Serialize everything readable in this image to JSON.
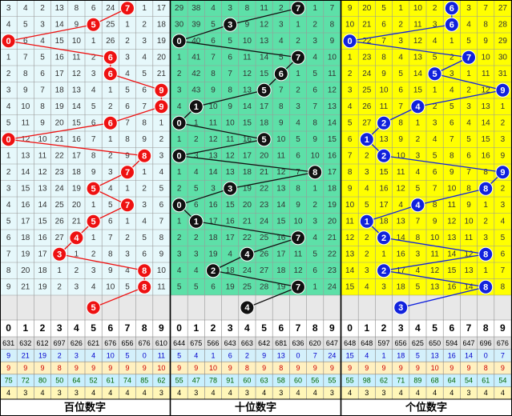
{
  "chart_data": {
    "type": "table",
    "sections": [
      {
        "label": "百位数字",
        "bg": "#e6f8fb",
        "ball_color": "#ee1111",
        "grid": [
          [
            "3",
            "4",
            "2",
            "13",
            "8",
            "6",
            "24",
            "7",
            "1",
            "17"
          ],
          [
            "4",
            "5",
            "3",
            "14",
            "9",
            "5",
            "25",
            "1",
            "2",
            "18"
          ],
          [
            "0",
            "6",
            "4",
            "15",
            "10",
            "1",
            "26",
            "2",
            "3",
            "19"
          ],
          [
            "1",
            "7",
            "5",
            "16",
            "11",
            "2",
            "6",
            "3",
            "4",
            "20"
          ],
          [
            "2",
            "8",
            "6",
            "17",
            "12",
            "3",
            "6",
            "4",
            "5",
            "21"
          ],
          [
            "3",
            "9",
            "7",
            "18",
            "13",
            "4",
            "1",
            "5",
            "6",
            "9"
          ],
          [
            "4",
            "10",
            "8",
            "19",
            "14",
            "5",
            "2",
            "6",
            "7",
            "9"
          ],
          [
            "5",
            "11",
            "9",
            "20",
            "15",
            "6",
            "6",
            "7",
            "8",
            "1"
          ],
          [
            "0",
            "12",
            "10",
            "21",
            "16",
            "7",
            "1",
            "8",
            "9",
            "2"
          ],
          [
            "1",
            "13",
            "11",
            "22",
            "17",
            "8",
            "2",
            "9",
            "8",
            "3"
          ],
          [
            "2",
            "14",
            "12",
            "23",
            "18",
            "9",
            "3",
            "7",
            "1",
            "4"
          ],
          [
            "3",
            "15",
            "13",
            "24",
            "19",
            "5",
            "4",
            "1",
            "2",
            "5"
          ],
          [
            "4",
            "16",
            "14",
            "25",
            "20",
            "1",
            "5",
            "7",
            "3",
            "6"
          ],
          [
            "5",
            "17",
            "15",
            "26",
            "21",
            "5",
            "6",
            "1",
            "4",
            "7"
          ],
          [
            "6",
            "18",
            "16",
            "27",
            "4",
            "1",
            "7",
            "2",
            "5",
            "8"
          ],
          [
            "7",
            "19",
            "17",
            "3",
            "1",
            "2",
            "8",
            "3",
            "6",
            "9"
          ],
          [
            "8",
            "20",
            "18",
            "1",
            "2",
            "3",
            "9",
            "4",
            "8",
            "10"
          ],
          [
            "9",
            "21",
            "19",
            "2",
            "3",
            "4",
            "10",
            "5",
            "8",
            "11"
          ]
        ],
        "hits": [
          7,
          5,
          0,
          6,
          6,
          9,
          9,
          6,
          0,
          8,
          7,
          5,
          7,
          5,
          4,
          3,
          8,
          8
        ],
        "forecast": 5,
        "stats": [
          [
            "631",
            "632",
            "612",
            "697",
            "626",
            "621",
            "676",
            "656",
            "676",
            "610"
          ],
          [
            "9",
            "21",
            "19",
            "2",
            "3",
            "4",
            "10",
            "5",
            "0",
            "11"
          ],
          [
            "9",
            "9",
            "9",
            "8",
            "9",
            "9",
            "9",
            "9",
            "9",
            "10"
          ],
          [
            "75",
            "72",
            "80",
            "50",
            "64",
            "52",
            "61",
            "74",
            "85",
            "62"
          ],
          [
            "4",
            "3",
            "4",
            "3",
            "3",
            "4",
            "4",
            "4",
            "4",
            "3"
          ]
        ]
      },
      {
        "label": "十位数字",
        "bg": "#5de0a8",
        "ball_color": "#111111",
        "grid": [
          [
            "29",
            "38",
            "4",
            "3",
            "8",
            "11",
            "2",
            "7",
            "1",
            "7"
          ],
          [
            "30",
            "39",
            "5",
            "3",
            "9",
            "12",
            "3",
            "1",
            "2",
            "8"
          ],
          [
            "0",
            "40",
            "6",
            "5",
            "10",
            "13",
            "4",
            "2",
            "3",
            "9"
          ],
          [
            "1",
            "41",
            "7",
            "6",
            "11",
            "14",
            "5",
            "7",
            "4",
            "10"
          ],
          [
            "2",
            "42",
            "8",
            "7",
            "12",
            "15",
            "6",
            "1",
            "5",
            "11"
          ],
          [
            "3",
            "43",
            "9",
            "8",
            "13",
            "5",
            "7",
            "2",
            "6",
            "12"
          ],
          [
            "4",
            "1",
            "10",
            "9",
            "14",
            "17",
            "8",
            "3",
            "7",
            "13"
          ],
          [
            "0",
            "1",
            "11",
            "10",
            "15",
            "18",
            "9",
            "4",
            "8",
            "14"
          ],
          [
            "1",
            "2",
            "12",
            "11",
            "16",
            "5",
            "10",
            "5",
            "9",
            "15"
          ],
          [
            "0",
            "3",
            "13",
            "12",
            "17",
            "20",
            "11",
            "6",
            "10",
            "16"
          ],
          [
            "1",
            "4",
            "14",
            "13",
            "18",
            "21",
            "12",
            "7",
            "8",
            "17"
          ],
          [
            "2",
            "5",
            "3",
            "14",
            "19",
            "22",
            "13",
            "8",
            "1",
            "18"
          ],
          [
            "0",
            "6",
            "16",
            "15",
            "20",
            "23",
            "14",
            "9",
            "2",
            "19"
          ],
          [
            "1",
            "1",
            "17",
            "16",
            "21",
            "24",
            "15",
            "10",
            "3",
            "20"
          ],
          [
            "2",
            "2",
            "18",
            "17",
            "22",
            "25",
            "16",
            "7",
            "4",
            "21"
          ],
          [
            "3",
            "3",
            "19",
            "4",
            "23",
            "26",
            "17",
            "11",
            "5",
            "22"
          ],
          [
            "4",
            "4",
            "2",
            "18",
            "24",
            "27",
            "18",
            "12",
            "6",
            "23"
          ],
          [
            "5",
            "5",
            "6",
            "19",
            "25",
            "28",
            "19",
            "7",
            "1",
            "24"
          ]
        ],
        "hits": [
          7,
          3,
          0,
          7,
          6,
          5,
          1,
          0,
          5,
          0,
          8,
          3,
          0,
          1,
          7,
          4,
          2,
          7
        ],
        "forecast": 4,
        "stats": [
          [
            "644",
            "675",
            "566",
            "643",
            "663",
            "642",
            "681",
            "636",
            "620",
            "647"
          ],
          [
            "5",
            "4",
            "1",
            "6",
            "2",
            "9",
            "13",
            "0",
            "7",
            "24"
          ],
          [
            "9",
            "9",
            "10",
            "9",
            "8",
            "9",
            "8",
            "9",
            "9",
            "9"
          ],
          [
            "55",
            "47",
            "78",
            "91",
            "60",
            "63",
            "58",
            "60",
            "56",
            "55"
          ],
          [
            "4",
            "3",
            "4",
            "4",
            "3",
            "4",
            "3",
            "4",
            "4",
            "3"
          ]
        ]
      },
      {
        "label": "个位数字",
        "bg": "#ffff00",
        "ball_color": "#1122dd",
        "grid": [
          [
            "9",
            "20",
            "5",
            "1",
            "10",
            "2",
            "6",
            "3",
            "7",
            "27"
          ],
          [
            "10",
            "21",
            "6",
            "2",
            "11",
            "3",
            "6",
            "4",
            "8",
            "28"
          ],
          [
            "0",
            "22",
            "7",
            "3",
            "12",
            "4",
            "1",
            "5",
            "9",
            "29"
          ],
          [
            "1",
            "23",
            "8",
            "4",
            "13",
            "5",
            "2",
            "7",
            "10",
            "30"
          ],
          [
            "2",
            "24",
            "9",
            "5",
            "14",
            "5",
            "3",
            "1",
            "11",
            "31"
          ],
          [
            "3",
            "25",
            "10",
            "6",
            "15",
            "1",
            "4",
            "2",
            "12",
            "9"
          ],
          [
            "4",
            "26",
            "11",
            "7",
            "4",
            "2",
            "5",
            "3",
            "13",
            "1"
          ],
          [
            "5",
            "27",
            "2",
            "8",
            "1",
            "3",
            "6",
            "4",
            "14",
            "2"
          ],
          [
            "6",
            "1",
            "13",
            "9",
            "2",
            "4",
            "7",
            "5",
            "15",
            "3"
          ],
          [
            "7",
            "2",
            "14",
            "10",
            "3",
            "5",
            "8",
            "6",
            "16",
            "9"
          ],
          [
            "8",
            "3",
            "15",
            "11",
            "4",
            "6",
            "9",
            "7",
            "8",
            "1"
          ],
          [
            "9",
            "4",
            "16",
            "12",
            "5",
            "7",
            "10",
            "8",
            "9",
            "2"
          ],
          [
            "10",
            "5",
            "17",
            "4",
            "6",
            "8",
            "11",
            "9",
            "1",
            "3"
          ],
          [
            "11",
            "1",
            "18",
            "13",
            "7",
            "9",
            "12",
            "10",
            "2",
            "4"
          ],
          [
            "12",
            "2",
            "19",
            "14",
            "8",
            "10",
            "13",
            "11",
            "3",
            "5"
          ],
          [
            "13",
            "2",
            "1",
            "16",
            "3",
            "11",
            "14",
            "12",
            "8",
            "6"
          ],
          [
            "14",
            "3",
            "2",
            "17",
            "4",
            "12",
            "15",
            "13",
            "1",
            "7"
          ],
          [
            "15",
            "4",
            "3",
            "18",
            "5",
            "13",
            "16",
            "14",
            "8",
            "8"
          ]
        ],
        "hits": [
          6,
          6,
          0,
          7,
          5,
          9,
          4,
          2,
          1,
          2,
          9,
          8,
          4,
          1,
          2,
          8,
          2,
          8
        ],
        "forecast": 3,
        "stats": [
          [
            "648",
            "648",
            "597",
            "656",
            "625",
            "650",
            "594",
            "647",
            "696",
            "676"
          ],
          [
            "15",
            "4",
            "1",
            "18",
            "5",
            "13",
            "16",
            "14",
            "0",
            "7"
          ],
          [
            "9",
            "9",
            "9",
            "9",
            "9",
            "10",
            "9",
            "9",
            "8",
            "9"
          ],
          [
            "55",
            "98",
            "62",
            "71",
            "89",
            "68",
            "64",
            "54",
            "61",
            "54"
          ],
          [
            "4",
            "3",
            "3",
            "4",
            "4",
            "4",
            "4",
            "3",
            "4",
            "4"
          ]
        ]
      }
    ],
    "digits": [
      "0",
      "1",
      "2",
      "3",
      "4",
      "5",
      "6",
      "7",
      "8",
      "9"
    ],
    "stat_row_colors": [
      "#e2e2e2",
      "#d4f0fb",
      "#fff0c0",
      "#c8f0ff",
      "#fff6b8"
    ],
    "stat_text_colors": [
      "#000000",
      "#0000cc",
      "#cc0000",
      "#006600",
      "#000000"
    ]
  }
}
